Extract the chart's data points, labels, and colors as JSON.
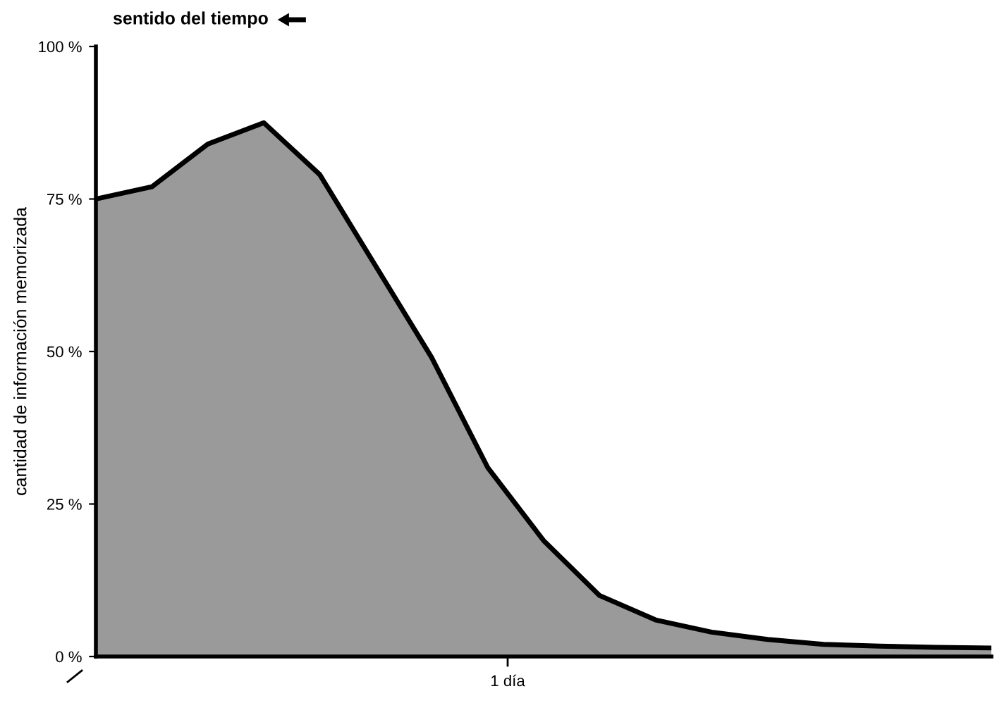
{
  "chart_data": {
    "type": "area",
    "title": "sentido del tiempo",
    "ylabel": "cantidad de información memorizada",
    "categories": [
      null,
      null,
      null,
      null,
      null,
      null,
      null,
      null,
      null,
      null,
      null,
      null,
      null,
      null,
      null,
      null,
      null
    ],
    "series": [
      {
        "color": "#9a9a9a",
        "values": [
          75,
          77,
          84,
          87.5,
          79,
          64,
          49,
          31,
          19,
          10,
          6,
          4,
          2.8,
          2,
          1.7,
          1.5,
          1.4
        ]
      }
    ],
    "ylim": [
      0,
      100
    ],
    "yticks": [
      {
        "value": 0,
        "label": "0 %"
      },
      {
        "value": 25,
        "label": "25 %"
      },
      {
        "value": 50,
        "label": "50 %"
      },
      {
        "value": 75,
        "label": "75 %"
      },
      {
        "value": 100,
        "label": "100 %"
      }
    ],
    "annotations": [
      "1 día"
    ],
    "grid": false,
    "legend": false
  }
}
